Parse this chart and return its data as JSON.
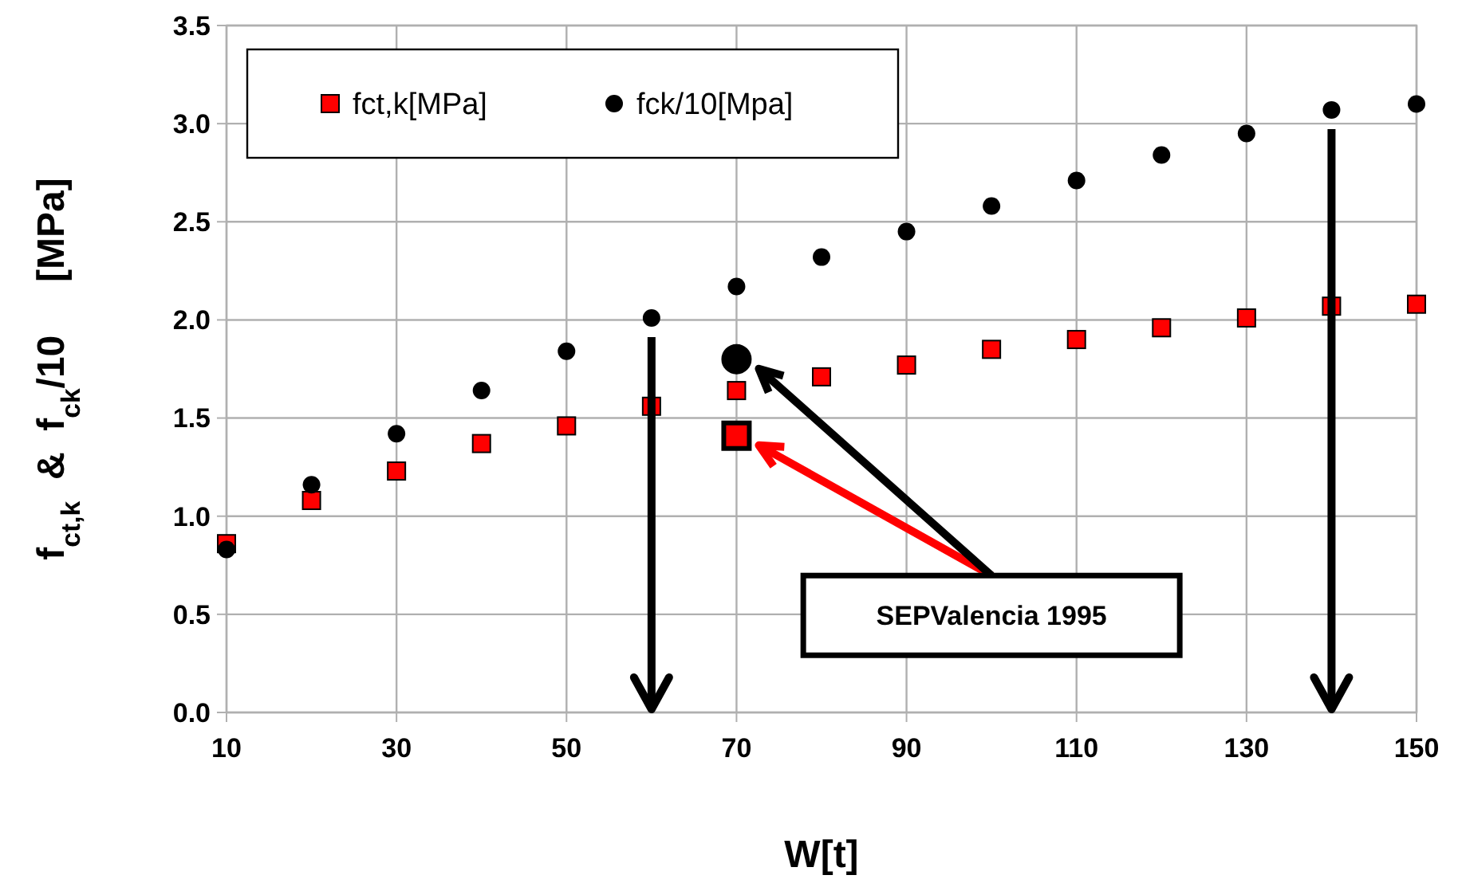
{
  "chart_data": {
    "type": "scatter",
    "xlabel": "W[t]",
    "ylabel": "f$_{ct,k}$  &  f$_{ck}$/10     [MPa]",
    "x": [
      10,
      20,
      30,
      40,
      50,
      60,
      70,
      80,
      90,
      100,
      110,
      120,
      130,
      140,
      150
    ],
    "series": [
      {
        "name": "fct,k[MPa]",
        "color": "#ff0000",
        "marker": "square",
        "values": [
          0.86,
          1.08,
          1.23,
          1.37,
          1.46,
          1.56,
          1.64,
          1.71,
          1.77,
          1.85,
          1.9,
          1.96,
          2.01,
          2.07,
          2.08
        ]
      },
      {
        "name": "fck/10[Mpa]",
        "color": "#000000",
        "marker": "circle",
        "values": [
          0.83,
          1.16,
          1.42,
          1.64,
          1.84,
          2.01,
          2.17,
          2.32,
          2.45,
          2.58,
          2.71,
          2.84,
          2.95,
          3.07,
          3.1
        ]
      },
      {
        "color": "#ff0000",
        "marker": "square",
        "x": [
          70
        ],
        "values": [
          1.41
        ]
      },
      {
        "color": "#000000",
        "marker": "circle",
        "x": [
          70
        ],
        "values": [
          1.8
        ]
      }
    ],
    "xlim": [
      10,
      150
    ],
    "xticks": [
      10,
      30,
      50,
      70,
      90,
      110,
      130,
      150
    ],
    "ylim": [
      0,
      3.5
    ],
    "yticks": [
      {
        "value": 0,
        "label": "0.0"
      },
      {
        "value": 0.5,
        "label": "0.5"
      },
      {
        "value": 1,
        "label": "1.0"
      },
      {
        "value": 1.5,
        "label": "1.5"
      },
      {
        "value": 2,
        "label": "2.0"
      },
      {
        "value": 2.5,
        "label": "2.5"
      },
      {
        "value": 3,
        "label": "3.0"
      },
      {
        "value": 3.5,
        "label": "3.5"
      }
    ],
    "grid": true,
    "legend": "top left",
    "ref_lines": [
      {
        "axis": "x",
        "value": 60,
        "color": "#000000"
      },
      {
        "axis": "x",
        "value": 140,
        "color": "#000000"
      }
    ],
    "annotations": [
      "SEPValencia 1995"
    ]
  }
}
